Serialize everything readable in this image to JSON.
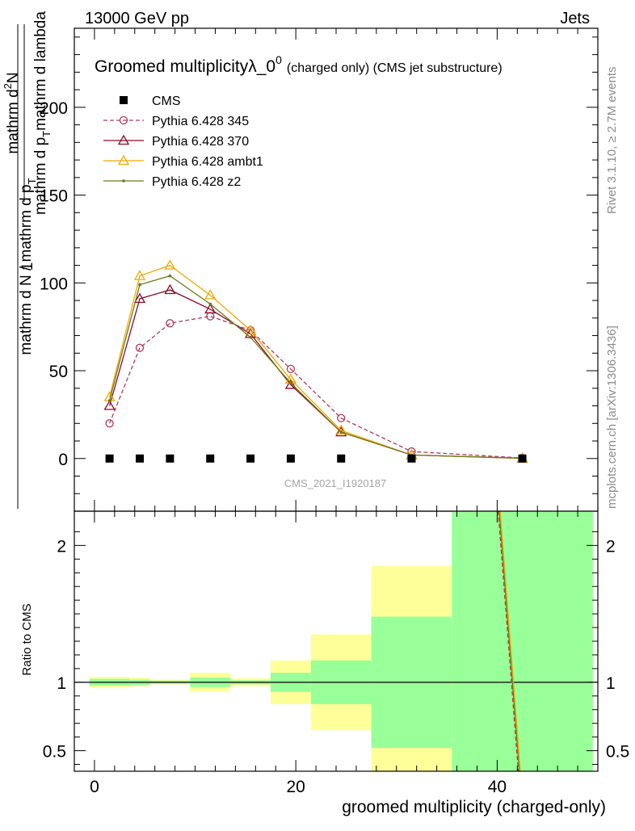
{
  "header": {
    "energy_label": "13000 GeV pp",
    "category_label": "Jets",
    "rivet_label": "Rivet 3.1.10, ≥ 2.7M events",
    "mcplots_label": "mcplots.cern.ch [arXiv:1306.3436]",
    "analysis_id": "CMS_2021_I1920187"
  },
  "chart_data": [
    {
      "type": "line",
      "title_main": "Groomed multiplicityλ_0",
      "title_sup": "0",
      "title_suffix": "(charged only) (CMS jet substructure)",
      "ylabel_num": "mathrm d",
      "ylabel_num_sup": "2",
      "ylabel_num_rest": "N",
      "ylabel_den": "mathrm d p",
      "ylabel_den_sub": "T",
      "ylabel_den_rest": "mathrm d lambda",
      "ylabel_prefix_num": "1",
      "ylabel_prefix_den": "mathrm d N / mathrm d p",
      "ylabel_prefix_den_sub": "T",
      "xlim": [
        -2,
        50
      ],
      "ylim": [
        -30,
        245
      ],
      "yticks": [
        0,
        50,
        100,
        150,
        200
      ],
      "series": [
        {
          "name": "CMS",
          "color": "#000000",
          "marker": "square",
          "x": [
            1.5,
            4.5,
            7.5,
            11.5,
            15.5,
            19.5,
            24.5,
            31.5,
            42.5
          ],
          "y": [
            0,
            0,
            0,
            0,
            0,
            0,
            0,
            0,
            0
          ]
        },
        {
          "name": "Pythia 6.428 345",
          "color": "#b03a5b",
          "marker": "circle",
          "dashed": true,
          "x": [
            1.5,
            4.5,
            7.5,
            11.5,
            15.5,
            19.5,
            24.5,
            31.5,
            42.5
          ],
          "y": [
            20,
            63,
            77,
            81,
            73,
            51,
            23,
            4,
            0.3
          ]
        },
        {
          "name": "Pythia 6.428 370",
          "color": "#8b0a2a",
          "marker": "triangle",
          "x": [
            1.5,
            4.5,
            7.5,
            11.5,
            15.5,
            19.5,
            24.5,
            31.5,
            42.5
          ],
          "y": [
            30,
            91,
            96,
            85,
            71,
            42,
            15,
            2,
            0.1
          ]
        },
        {
          "name": "Pythia 6.428 ambt1",
          "color": "#f2a900",
          "marker": "triangle",
          "x": [
            1.5,
            4.5,
            7.5,
            11.5,
            15.5,
            19.5,
            24.5,
            31.5,
            42.5
          ],
          "y": [
            35,
            104,
            110,
            93,
            73,
            45,
            16,
            2,
            0.1
          ]
        },
        {
          "name": "Pythia 6.428 z2",
          "color": "#6b7a1a",
          "marker": "dot",
          "x": [
            1.5,
            4.5,
            7.5,
            11.5,
            15.5,
            19.5,
            24.5,
            31.5,
            42.5
          ],
          "y": [
            33,
            99,
            104,
            88,
            69,
            43,
            15,
            2,
            0.1
          ]
        }
      ]
    },
    {
      "type": "area",
      "ylabel": "Ratio to CMS",
      "xlabel": "groomed multiplicity (charged-only)",
      "xlim": [
        -2,
        50
      ],
      "ylim": [
        0.35,
        2.25
      ],
      "xticks": [
        0,
        20,
        40
      ],
      "yticks": [
        0.5,
        1,
        2
      ],
      "ytick_labels": [
        "0.5",
        "1",
        "2"
      ],
      "bands": [
        {
          "x0": -0.5,
          "x1": 3.5,
          "yellow": [
            0.96,
            1.04
          ],
          "green": [
            0.975,
            1.025
          ]
        },
        {
          "x0": 3.5,
          "x1": 5.5,
          "yellow": [
            0.97,
            1.035
          ],
          "green": [
            0.98,
            1.02
          ]
        },
        {
          "x0": 5.5,
          "x1": 9.5,
          "yellow": [
            0.985,
            1.02
          ],
          "green": [
            0.99,
            1.012
          ]
        },
        {
          "x0": 9.5,
          "x1": 13.5,
          "yellow": [
            0.93,
            1.07
          ],
          "green": [
            0.965,
            1.035
          ]
        },
        {
          "x0": 13.5,
          "x1": 17.5,
          "yellow": [
            0.97,
            1.03
          ],
          "green": [
            0.985,
            1.015
          ]
        },
        {
          "x0": 17.5,
          "x1": 21.5,
          "yellow": [
            0.84,
            1.16
          ],
          "green": [
            0.93,
            1.07
          ]
        },
        {
          "x0": 21.5,
          "x1": 27.5,
          "yellow": [
            0.65,
            1.35
          ],
          "green": [
            0.84,
            1.16
          ]
        },
        {
          "x0": 27.5,
          "x1": 35.5,
          "yellow": [
            0.0,
            1.85
          ],
          "green": [
            0.52,
            1.48
          ]
        },
        {
          "x0": 35.5,
          "x1": 49.5,
          "yellow": [
            0.0,
            3.0
          ],
          "green": [
            0.0,
            3.0
          ]
        }
      ],
      "ratio_lines": [
        {
          "color": "#b03a5b",
          "dashed": true,
          "x": [
            40.1,
            42.1
          ],
          "y": [
            2.4,
            0.3
          ]
        },
        {
          "color": "#6b7a1a",
          "x": [
            40.2,
            42.2
          ],
          "y": [
            2.4,
            0.3
          ]
        },
        {
          "color": "#f2a900",
          "x": [
            40.3,
            42.3
          ],
          "y": [
            2.4,
            0.3
          ]
        }
      ]
    }
  ]
}
